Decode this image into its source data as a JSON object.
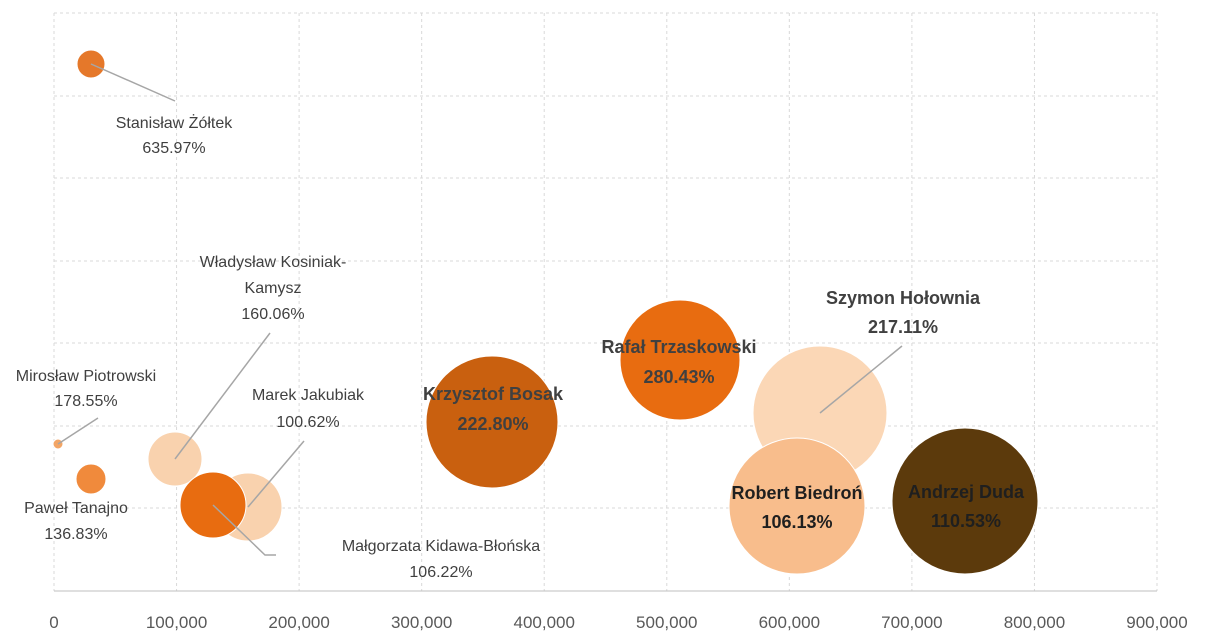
{
  "chart_data": {
    "type": "bubble",
    "xlim": [
      0,
      900000
    ],
    "xticks": [
      "0",
      "100,000",
      "200,000",
      "300,000",
      "400,000",
      "500,000",
      "600,000",
      "700,000",
      "800,000",
      "900,000"
    ],
    "grid": true,
    "points": [
      {
        "name": "Stanisław Żółtek",
        "x": 30000,
        "pct": "635.97%",
        "value": 635.97,
        "color": "#5c3a0c"
      },
      {
        "name": "Mirosław Piotrowski",
        "x": 3500,
        "pct": "178.55%",
        "value": 178.55,
        "color": "#e5782a"
      },
      {
        "name": "Paweł Tanajno",
        "x": 29000,
        "pct": "136.83%",
        "value": 136.83,
        "color": "#f3a565"
      },
      {
        "name": "Władysław Kosiniak-Kamysz",
        "x": 97000,
        "pct": "160.06%",
        "value": 160.06,
        "color": "#f08a3c"
      },
      {
        "name": "Marek Jakubiak",
        "x": 158000,
        "pct": "100.62%",
        "value": 100.62,
        "color": "#f9d2ae"
      },
      {
        "name": "Małgorzata Kidawa-Błońska",
        "x": 130000,
        "pct": "106.22%",
        "value": 106.22,
        "color": "#f9d2ae"
      },
      {
        "name": "Krzysztof Bosak",
        "x": 358000,
        "pct": "222.80%",
        "value": 222.8,
        "color": "#e86c10"
      },
      {
        "name": "Rafał Trzaskowski",
        "x": 509000,
        "pct": "280.43%",
        "value": 280.43,
        "color": "#c9600f"
      },
      {
        "name": "Szymon Hołownia",
        "x": 625000,
        "pct": "217.11%",
        "value": 217.11,
        "color": "#e86c10"
      },
      {
        "name": "Robert Biedroń",
        "x": 605000,
        "pct": "106.13%",
        "value": 106.13,
        "color": "#fbd7b6"
      },
      {
        "name": "Andrzej Duda",
        "x": 744000,
        "pct": "110.53%",
        "value": 110.53,
        "color": "#f8bd8c"
      }
    ]
  }
}
